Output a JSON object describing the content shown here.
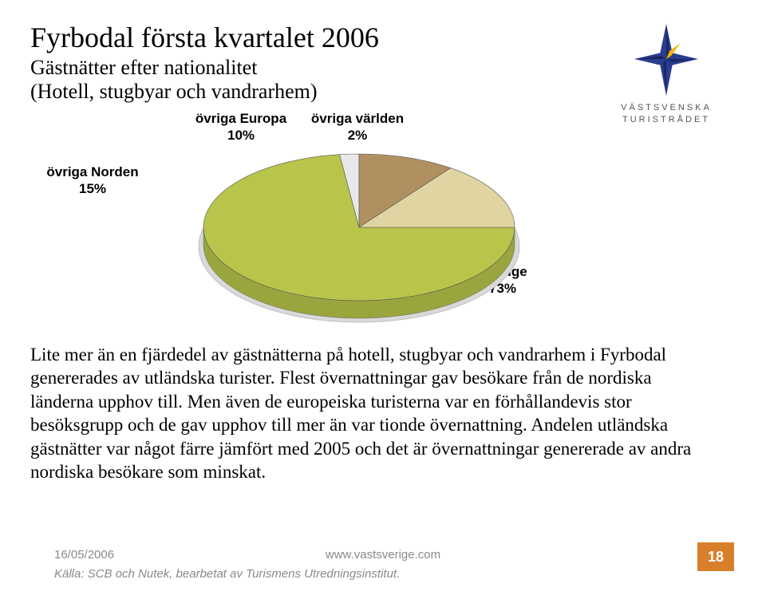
{
  "title": "Fyrbodal första kvartalet 2006",
  "subtitle_line1": "Gästnätter efter nationalitet",
  "subtitle_line2": "(Hotell, stugbyar och vandrarhem)",
  "logo": {
    "line1": "VÄSTSVENSKA",
    "line2": "TURISTRÅDET",
    "star_color": "#2a3d8f",
    "accent_color": "#f5b400"
  },
  "chart": {
    "type": "pie-3d",
    "background_color": "#ffffff",
    "plate_color": "#d9d9d9",
    "plate_edge": "#bfbfbf",
    "label_fontsize": 17,
    "label_fontweight": "700",
    "slices": [
      {
        "key": "sverige",
        "label": "Sverige",
        "percent": 73,
        "color": "#b8c44a",
        "side_color": "#9aa53e",
        "start_deg": 90,
        "end_deg": 352.8
      },
      {
        "key": "varlden",
        "label": "övriga världen",
        "percent": 2,
        "color": "#e8e8e8",
        "side_color": "#c9c9c9",
        "start_deg": 352.8,
        "end_deg": 360
      },
      {
        "key": "europa",
        "label": "övriga Europa",
        "percent": 10,
        "color": "#b09060",
        "side_color": "#8e744d",
        "start_deg": 0,
        "end_deg": 36
      },
      {
        "key": "norden",
        "label": "övriga Norden",
        "percent": 15,
        "color": "#e0d4a2",
        "side_color": "#c0b47f",
        "start_deg": 36,
        "end_deg": 90
      }
    ],
    "labels": {
      "norden_line1": "övriga Norden",
      "norden_line2": "15%",
      "europa_line1": "övriga Europa",
      "europa_line2": "10%",
      "varlden_line1": "övriga världen",
      "varlden_line2": "2%",
      "sverige_line1": "Sverige",
      "sverige_line2": "73%"
    }
  },
  "body_text": "Lite mer än en fjärdedel av gästnätterna på hotell, stugbyar och vandrarhem i Fyrbodal genererades av utländska turister. Flest övernattningar gav besökare från de nordiska länderna upphov till. Men även de europeiska turisterna var en förhållandevis stor besöksgrupp och de gav upphov till mer än var tionde övernattning. Andelen utländska gästnätter var något färre jämfört med 2005 och det är övernattningar genererade av andra nordiska besökare som minskat.",
  "footer": {
    "date": "16/05/2006",
    "url": "www.vastsverige.com",
    "page": "18",
    "source": "Källa: SCB och Nutek, bearbetat av Turismens Utredningsinstitut.",
    "page_bg": "#d97f2a",
    "footer_text_color": "#8a8a8a"
  }
}
